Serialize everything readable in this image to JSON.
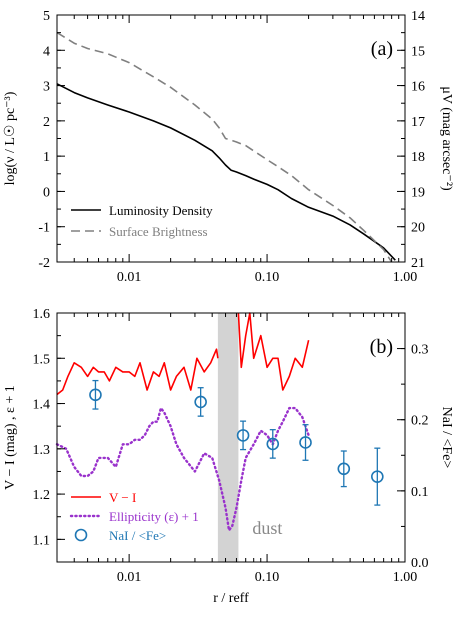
{
  "chart_data": [
    {
      "type": "line",
      "panel_label": "(a)",
      "x_scale": "log",
      "xlim": [
        0.003,
        1.0
      ],
      "x_ticks": [
        0.01,
        0.1,
        1.0
      ],
      "x_tick_labels": [
        "0.01",
        "0.10",
        "1.00"
      ],
      "ylabel_left": "log(ν / L☉ pc⁻³)",
      "ylim_left": [
        -2,
        5
      ],
      "y_ticks_left": [
        -2,
        -1,
        0,
        1,
        2,
        3,
        4,
        5
      ],
      "ylabel_right": "μV (mag arcsec⁻²)",
      "ylim_right": [
        21,
        14
      ],
      "y_ticks_right": [
        14,
        15,
        16,
        17,
        18,
        19,
        20,
        21
      ],
      "legend": "bottom-left",
      "series": [
        {
          "name": "Luminosity Density",
          "color": "#000000",
          "axis": "left",
          "style": "solid",
          "x": [
            0.003,
            0.004,
            0.005,
            0.007,
            0.01,
            0.015,
            0.02,
            0.03,
            0.04,
            0.045,
            0.05,
            0.055,
            0.06,
            0.07,
            0.08,
            0.1,
            0.12,
            0.15,
            0.2,
            0.3,
            0.4,
            0.5,
            0.7,
            0.85
          ],
          "y": [
            3.05,
            2.8,
            2.65,
            2.45,
            2.25,
            2.0,
            1.8,
            1.45,
            1.15,
            0.95,
            0.75,
            0.6,
            0.55,
            0.45,
            0.35,
            0.2,
            0.05,
            -0.2,
            -0.45,
            -0.7,
            -0.95,
            -1.2,
            -1.6,
            -1.95
          ]
        },
        {
          "name": "Surface Brightness",
          "color": "#808080",
          "axis": "right",
          "style": "dashed",
          "x": [
            0.003,
            0.004,
            0.005,
            0.007,
            0.01,
            0.015,
            0.02,
            0.03,
            0.04,
            0.045,
            0.05,
            0.055,
            0.06,
            0.07,
            0.08,
            0.1,
            0.12,
            0.15,
            0.2,
            0.3,
            0.4,
            0.5,
            0.7,
            0.8
          ],
          "y": [
            14.5,
            14.8,
            14.95,
            15.1,
            15.35,
            15.75,
            16.05,
            16.55,
            16.95,
            17.2,
            17.5,
            17.55,
            17.6,
            17.7,
            17.85,
            18.1,
            18.3,
            18.55,
            18.95,
            19.4,
            19.75,
            20.1,
            20.65,
            21.0
          ]
        }
      ]
    },
    {
      "type": "line",
      "panel_label": "(b)",
      "x_scale": "log",
      "xlim": [
        0.003,
        1.0
      ],
      "x_ticks": [
        0.01,
        0.1,
        1.0
      ],
      "x_tick_labels": [
        "0.01",
        "0.10",
        "1.00"
      ],
      "xlabel": "r / reff",
      "ylabel_left": "V − I (mag) ,   ε + 1",
      "ylim_left": [
        1.05,
        1.6
      ],
      "y_ticks_left": [
        1.1,
        1.2,
        1.3,
        1.4,
        1.5,
        1.6
      ],
      "ylabel_right": "NaI / <Fe>",
      "ylim_right": [
        0.0,
        0.35
      ],
      "y_ticks_right": [
        0.0,
        0.1,
        0.2,
        0.3
      ],
      "shaded_region": {
        "x": [
          0.044,
          0.062
        ],
        "label": "dust",
        "color": "#d3d3d3"
      },
      "legend": "bottom-left",
      "series": [
        {
          "name": "V − I",
          "color": "#ff0000",
          "axis": "left",
          "style": "solid",
          "x": [
            0.003,
            0.0033,
            0.0036,
            0.004,
            0.0045,
            0.005,
            0.0055,
            0.006,
            0.0066,
            0.0072,
            0.008,
            0.009,
            0.01,
            0.011,
            0.012,
            0.0135,
            0.015,
            0.0165,
            0.018,
            0.02,
            0.022,
            0.025,
            0.028,
            0.031,
            0.035,
            0.039,
            0.043,
            0.044
          ],
          "y": [
            1.42,
            1.43,
            1.46,
            1.49,
            1.48,
            1.46,
            1.48,
            1.47,
            1.47,
            1.45,
            1.48,
            1.47,
            1.47,
            1.46,
            1.49,
            1.43,
            1.47,
            1.46,
            1.49,
            1.43,
            1.46,
            1.48,
            1.43,
            1.5,
            1.47,
            1.49,
            1.52,
            1.5
          ],
          "x2": [
            0.062,
            0.065,
            0.07,
            0.075,
            0.08,
            0.09,
            0.1,
            0.11,
            0.12,
            0.13,
            0.145,
            0.16,
            0.18,
            0.2
          ],
          "y2": [
            1.6,
            1.48,
            1.55,
            1.6,
            1.5,
            1.55,
            1.48,
            1.5,
            1.5,
            1.43,
            1.46,
            1.5,
            1.48,
            1.54
          ]
        },
        {
          "name": "Ellipticity (ε) + 1",
          "color": "#9932cc",
          "axis": "left",
          "style": "dotted",
          "x": [
            0.003,
            0.0035,
            0.004,
            0.0045,
            0.005,
            0.0055,
            0.006,
            0.007,
            0.008,
            0.009,
            0.01,
            0.011,
            0.012,
            0.013,
            0.014,
            0.015,
            0.016,
            0.017,
            0.018,
            0.02,
            0.022,
            0.025,
            0.03,
            0.035,
            0.04,
            0.045,
            0.05,
            0.053,
            0.056,
            0.06,
            0.065,
            0.07,
            0.08,
            0.09,
            0.1,
            0.11,
            0.12,
            0.13,
            0.145,
            0.16,
            0.18,
            0.2
          ],
          "y": [
            1.31,
            1.3,
            1.26,
            1.24,
            1.24,
            1.25,
            1.28,
            1.28,
            1.26,
            1.31,
            1.31,
            1.32,
            1.32,
            1.33,
            1.35,
            1.36,
            1.36,
            1.39,
            1.38,
            1.35,
            1.31,
            1.28,
            1.25,
            1.29,
            1.28,
            1.23,
            1.17,
            1.12,
            1.13,
            1.17,
            1.23,
            1.28,
            1.31,
            1.34,
            1.33,
            1.31,
            1.34,
            1.36,
            1.39,
            1.39,
            1.37,
            1.33
          ]
        },
        {
          "name": "NaI / <Fe>",
          "color": "#1f77b4",
          "axis": "right",
          "style": "markers",
          "x": [
            0.0057,
            0.033,
            0.067,
            0.11,
            0.19,
            0.36,
            0.63
          ],
          "y": [
            0.235,
            0.225,
            0.178,
            0.166,
            0.168,
            0.131,
            0.12
          ],
          "err": [
            0.02,
            0.02,
            0.02,
            0.02,
            0.025,
            0.025,
            0.04
          ]
        }
      ]
    }
  ]
}
